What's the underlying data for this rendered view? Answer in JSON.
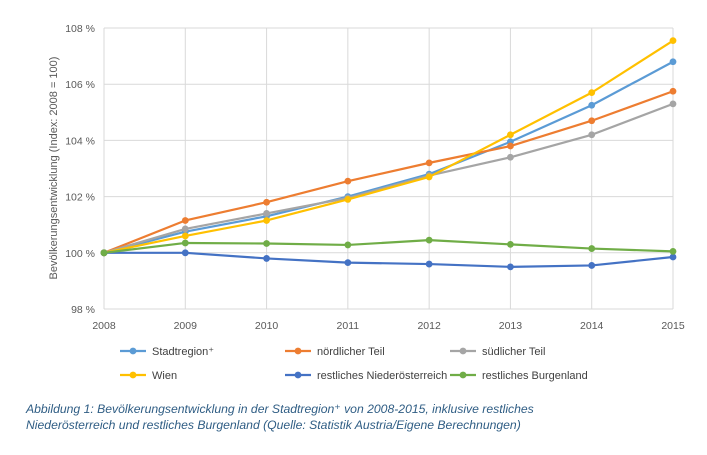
{
  "chart_data": {
    "type": "line",
    "x": [
      "2008",
      "2009",
      "2010",
      "2011",
      "2012",
      "2013",
      "2014",
      "2015"
    ],
    "ylabel": "Bevölkerungsentwicklung (Index: 2008 = 100)",
    "ylim": [
      98,
      108
    ],
    "yticks": [
      98,
      100,
      102,
      104,
      106,
      108
    ],
    "ytick_labels": [
      "98 %",
      "100 %",
      "102 %",
      "104 %",
      "106 %",
      "108 %"
    ],
    "grid": true,
    "legend_position": "bottom",
    "series": [
      {
        "name": "Stadtregion⁺",
        "color": "#5b9bd5",
        "values": [
          100,
          100.75,
          101.3,
          102.0,
          102.8,
          103.95,
          105.25,
          106.8
        ]
      },
      {
        "name": "nördlicher Teil",
        "color": "#ed7d31",
        "values": [
          100,
          101.15,
          101.8,
          102.55,
          103.2,
          103.8,
          104.7,
          105.75
        ]
      },
      {
        "name": "südlicher Teil",
        "color": "#a5a5a5",
        "values": [
          100,
          100.85,
          101.4,
          101.95,
          102.75,
          103.4,
          104.2,
          105.3
        ]
      },
      {
        "name": "Wien",
        "color": "#ffc000",
        "values": [
          100,
          100.6,
          101.15,
          101.9,
          102.7,
          104.2,
          105.7,
          107.55
        ]
      },
      {
        "name": "restliches Niederösterreich",
        "color": "#4472c4",
        "values": [
          100,
          100.0,
          99.8,
          99.65,
          99.6,
          99.5,
          99.55,
          99.85
        ]
      },
      {
        "name": "restliches Burgenland",
        "color": "#70ad47",
        "values": [
          100,
          100.35,
          100.33,
          100.28,
          100.45,
          100.3,
          100.15,
          100.05
        ]
      }
    ]
  },
  "caption": "Abbildung 1: Bevölkerungsentwicklung in der Stadtregion⁺ von 2008-2015, inklusive restliches Niederösterreich und restliches Burgenland (Quelle: Statistik Austria/Eigene Berechnungen)"
}
